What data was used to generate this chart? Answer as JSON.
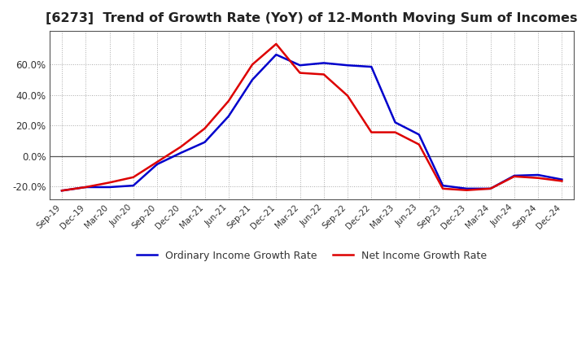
{
  "title": "[6273]  Trend of Growth Rate (YoY) of 12-Month Moving Sum of Incomes",
  "title_fontsize": 11.5,
  "ylim": [
    -0.285,
    0.82
  ],
  "yticks": [
    -0.2,
    0.0,
    0.2,
    0.4,
    0.6
  ],
  "ytick_labels": [
    "-20.0%",
    "0.0%",
    "20.0%",
    "40.0%",
    "60.0%"
  ],
  "background_color": "#ffffff",
  "grid_color": "#aaaaaa",
  "ordinary_color": "#0000cc",
  "net_color": "#dd0000",
  "legend_ordinary": "Ordinary Income Growth Rate",
  "legend_net": "Net Income Growth Rate",
  "x_labels": [
    "Sep-19",
    "Dec-19",
    "Mar-20",
    "Jun-20",
    "Sep-20",
    "Dec-20",
    "Mar-21",
    "Jun-21",
    "Sep-21",
    "Dec-21",
    "Mar-22",
    "Jun-22",
    "Sep-22",
    "Dec-22",
    "Mar-23",
    "Jun-23",
    "Sep-23",
    "Dec-23",
    "Mar-24",
    "Jun-24",
    "Sep-24",
    "Dec-24"
  ],
  "ordinary_values": [
    -0.228,
    -0.205,
    -0.205,
    -0.195,
    -0.055,
    0.02,
    0.09,
    0.26,
    0.5,
    0.665,
    0.595,
    0.61,
    0.595,
    0.585,
    0.22,
    0.14,
    -0.195,
    -0.215,
    -0.215,
    -0.13,
    -0.125,
    -0.155
  ],
  "net_values": [
    -0.228,
    -0.205,
    -0.175,
    -0.14,
    -0.04,
    0.06,
    0.18,
    0.36,
    0.6,
    0.735,
    0.545,
    0.535,
    0.395,
    0.155,
    0.155,
    0.075,
    -0.215,
    -0.225,
    -0.215,
    -0.135,
    -0.145,
    -0.165
  ]
}
